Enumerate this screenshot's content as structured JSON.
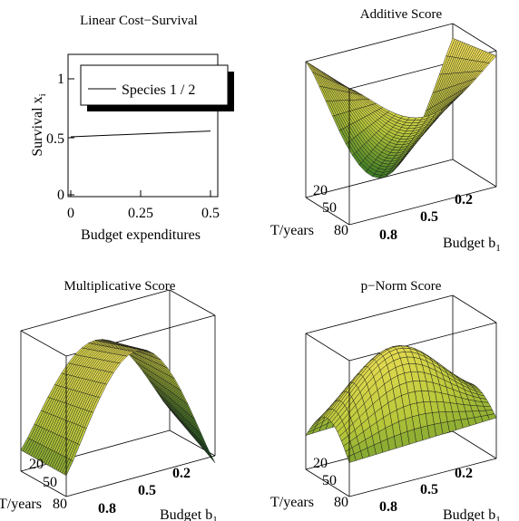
{
  "chart_data": [
    {
      "type": "line",
      "title": "Linear Cost−Survival",
      "xlabel": "Budget expenditures",
      "ylabel": "Survival x",
      "ylabel_sub": "i",
      "x_ticks": [
        "0",
        "0.25",
        "0.5"
      ],
      "y_ticks": [
        "0",
        "0.5",
        "1"
      ],
      "xlim": [
        0,
        0.5
      ],
      "ylim": [
        0,
        1
      ],
      "legend": {
        "label": "Species 1 / 2",
        "placement": "top"
      },
      "series": [
        {
          "name": "Species 1 / 2",
          "x": [
            0,
            0.5
          ],
          "y": [
            0.5,
            0.55
          ]
        }
      ]
    },
    {
      "type": "surface",
      "title": "Additive Score",
      "xlabel": "Budget b",
      "xlabel_sub": "1",
      "ylabel": "T/years",
      "x_ticks": [
        "0.2",
        "0.5",
        "0.8"
      ],
      "t_ticks": [
        "20",
        "50",
        "80"
      ],
      "shape": "valley"
    },
    {
      "type": "surface",
      "title": "Multiplicative Score",
      "xlabel": "Budget b",
      "xlabel_sub": "1",
      "ylabel": "T/years",
      "x_ticks": [
        "0.2",
        "0.5",
        "0.8"
      ],
      "t_ticks": [
        "20",
        "50",
        "80"
      ],
      "shape": "ridge"
    },
    {
      "type": "surface",
      "title": "p−Norm Score",
      "xlabel": "Budget b",
      "xlabel_sub": "1",
      "ylabel": "T/years",
      "x_ticks": [
        "0.2",
        "0.5",
        "0.8"
      ],
      "t_ticks": [
        "20",
        "50",
        "80"
      ],
      "shape": "dome"
    }
  ],
  "colors": {
    "surface_high": "#f7e35a",
    "surface_mid": "#b9c83a",
    "surface_low": "#3d8f2a",
    "surface_dark": "#1f6a20",
    "mesh": "#1a1a1a"
  }
}
